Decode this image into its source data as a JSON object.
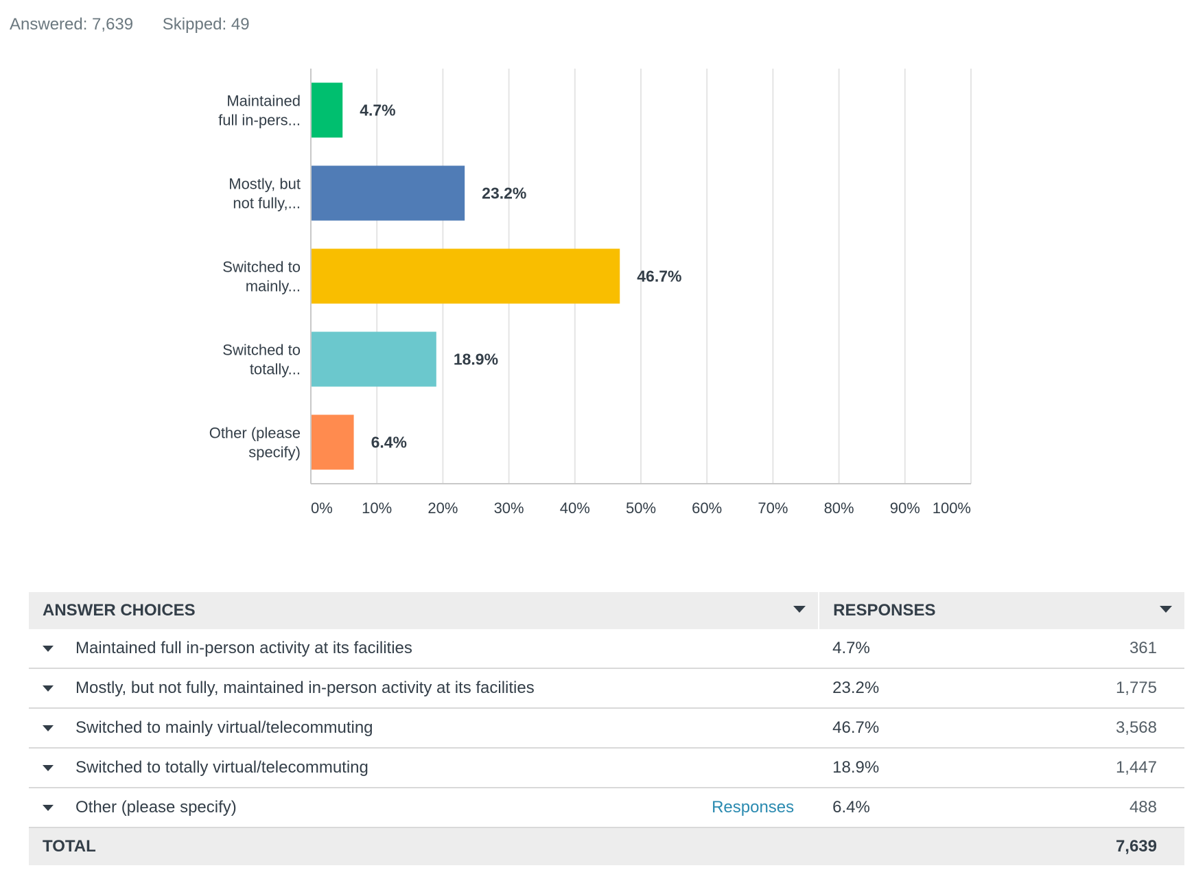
{
  "summary": {
    "answered": "Answered: 7,639",
    "skipped": "Skipped: 49"
  },
  "chart_data": {
    "type": "bar",
    "orientation": "horizontal",
    "categories": [
      [
        "Maintained",
        "full in-pers..."
      ],
      [
        "Mostly, but",
        "not fully,..."
      ],
      [
        "Switched to",
        "mainly..."
      ],
      [
        "Switched to",
        "totally..."
      ],
      [
        "Other (please",
        "specify)"
      ]
    ],
    "values": [
      4.7,
      23.2,
      46.7,
      18.9,
      6.4
    ],
    "value_labels": [
      "4.7%",
      "23.2%",
      "46.7%",
      "18.9%",
      "6.4%"
    ],
    "colors": [
      "#00bf6f",
      "#507cb6",
      "#f9be00",
      "#6bc8cd",
      "#ff8b4f"
    ],
    "xlim": [
      0,
      100
    ],
    "ticks": [
      "0%",
      "10%",
      "20%",
      "30%",
      "40%",
      "50%",
      "60%",
      "70%",
      "80%",
      "90%",
      "100%"
    ],
    "grid": true
  },
  "table": {
    "headers": {
      "choices": "ANSWER CHOICES",
      "responses": "RESPONSES"
    },
    "rows": [
      {
        "choice": "Maintained full in-person activity at its facilities",
        "pct": "4.7%",
        "count": "361"
      },
      {
        "choice": "Mostly, but not fully, maintained in-person activity at its facilities",
        "pct": "23.2%",
        "count": "1,775"
      },
      {
        "choice": "Switched to mainly virtual/telecommuting",
        "pct": "46.7%",
        "count": "3,568"
      },
      {
        "choice": "Switched to totally virtual/telecommuting",
        "pct": "18.9%",
        "count": "1,447"
      },
      {
        "choice": "Other (please specify)",
        "pct": "6.4%",
        "count": "488",
        "link": "Responses"
      }
    ],
    "total_label": "TOTAL",
    "total": "7,639"
  }
}
